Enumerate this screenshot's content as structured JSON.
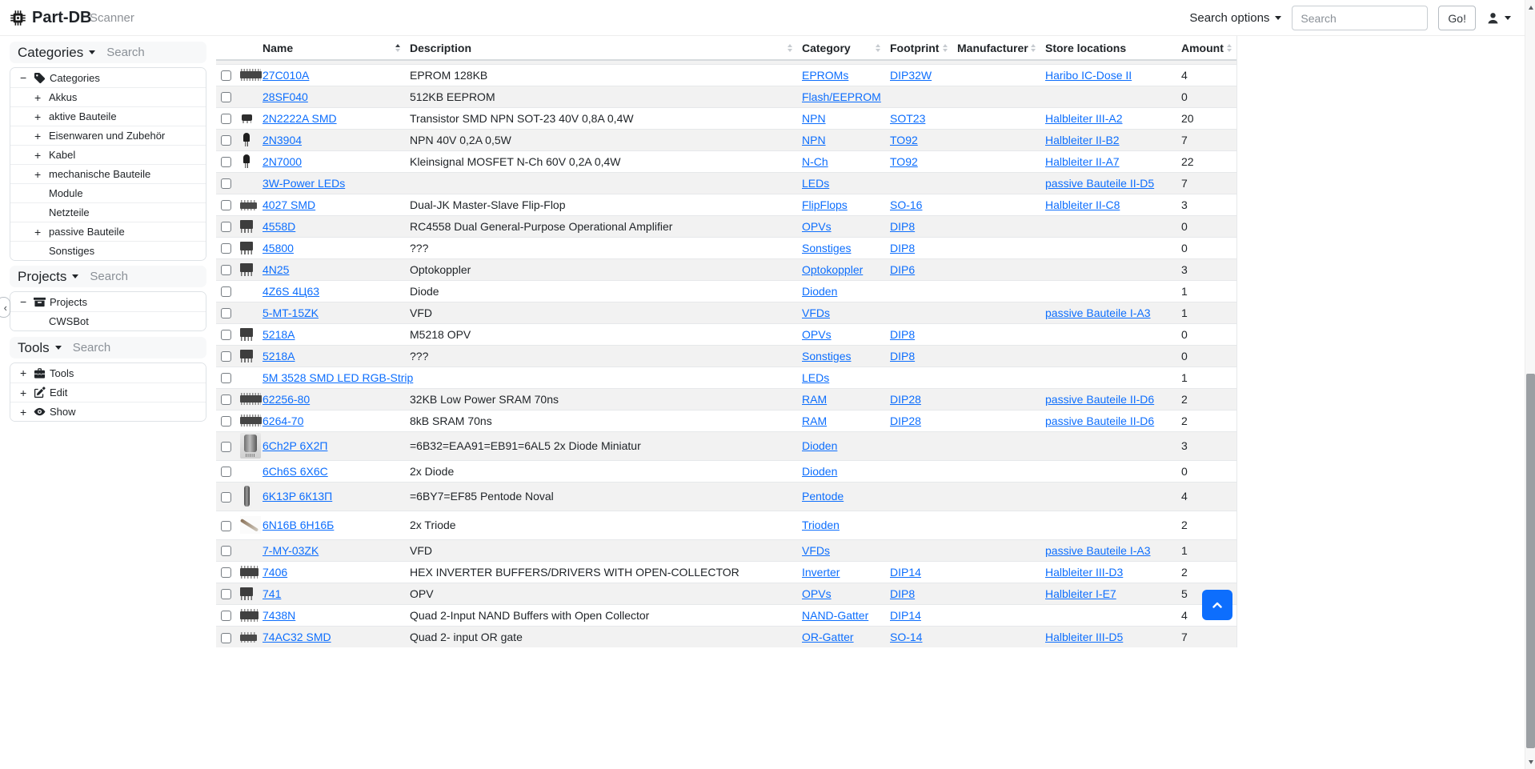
{
  "colors": {
    "link": "#0d6efd",
    "accent": "#0d6efd"
  },
  "navbar": {
    "brand": "Part-DB",
    "brand_icon": "microchip-icon",
    "nav_scanner": "Scanner",
    "search_options_label": "Search options",
    "search_placeholder": "Search",
    "go_label": "Go!",
    "user_icon": "person-icon"
  },
  "sidebar": {
    "collapse_handle_icon": "chevron-left-icon",
    "panels": [
      {
        "title": "Categories",
        "search_placeholder": "Search",
        "tree": [
          {
            "label": "Categories",
            "state": "expanded",
            "icon": "tag-icon",
            "level": 0
          },
          {
            "label": "Akkus",
            "state": "collapsed",
            "level": 1
          },
          {
            "label": "aktive Bauteile",
            "state": "collapsed",
            "level": 1
          },
          {
            "label": "Eisenwaren und Zubehör",
            "state": "collapsed",
            "level": 1
          },
          {
            "label": "Kabel",
            "state": "collapsed",
            "level": 1
          },
          {
            "label": "mechanische Bauteile",
            "state": "collapsed",
            "level": 1
          },
          {
            "label": "Module",
            "state": "leaf",
            "level": 1
          },
          {
            "label": "Netzteile",
            "state": "leaf",
            "level": 1
          },
          {
            "label": "passive Bauteile",
            "state": "collapsed",
            "level": 1
          },
          {
            "label": "Sonstiges",
            "state": "leaf",
            "level": 1
          }
        ]
      },
      {
        "title": "Projects",
        "search_placeholder": "Search",
        "tree": [
          {
            "label": "Projects",
            "state": "expanded",
            "icon": "archive-icon",
            "level": 0
          },
          {
            "label": "CWSBot",
            "state": "leaf",
            "level": 1
          }
        ]
      },
      {
        "title": "Tools",
        "search_placeholder": "Search",
        "tree": [
          {
            "label": "Tools",
            "state": "collapsed",
            "icon": "toolbox-icon",
            "level": 0
          },
          {
            "label": "Edit",
            "state": "collapsed",
            "icon": "pencil-square-icon",
            "level": 0
          },
          {
            "label": "Show",
            "state": "collapsed",
            "icon": "eye-icon",
            "level": 0
          }
        ]
      }
    ]
  },
  "table": {
    "columns": [
      {
        "label": "Name",
        "sort": "asc"
      },
      {
        "label": "Description",
        "sort": "both"
      },
      {
        "label": "Category",
        "sort": "both"
      },
      {
        "label": "Footprint",
        "sort": "both"
      },
      {
        "label": "Manufacturer",
        "sort": "both"
      },
      {
        "label": "Store locations",
        "sort": "none"
      },
      {
        "label": "Amount",
        "sort": "both"
      }
    ],
    "rows": [
      {
        "name": "27C010A",
        "description": "EPROM 128KB",
        "category": "EPROMs",
        "footprint": "DIP32W",
        "manufacturer": "",
        "location": "Haribo IC-Dose II",
        "amount": "4",
        "thumb": "dip-wide"
      },
      {
        "name": "28SF040",
        "description": "512KB EEPROM",
        "category": "Flash/EEPROM",
        "footprint": "",
        "manufacturer": "",
        "location": "",
        "amount": "0",
        "thumb": ""
      },
      {
        "name": "2N2222A SMD",
        "description": "Transistor SMD NPN SOT-23 40V 0,8A 0,4W",
        "category": "NPN",
        "footprint": "SOT23",
        "manufacturer": "",
        "location": "Halbleiter III-A2",
        "amount": "20",
        "thumb": "sot23"
      },
      {
        "name": "2N3904",
        "description": "NPN 40V 0,2A 0,5W",
        "category": "NPN",
        "footprint": "TO92",
        "manufacturer": "",
        "location": "Halbleiter II-B2",
        "amount": "7",
        "thumb": "to92"
      },
      {
        "name": "2N7000",
        "description": "Kleinsignal MOSFET N-Ch 60V 0,2A 0,4W",
        "category": "N-Ch",
        "footprint": "TO92",
        "manufacturer": "",
        "location": "Halbleiter II-A7",
        "amount": "22",
        "thumb": "to92"
      },
      {
        "name": "3W-Power LEDs",
        "description": "",
        "category": "LEDs",
        "footprint": "",
        "manufacturer": "",
        "location": "passive Bauteile II-D5",
        "amount": "7",
        "thumb": ""
      },
      {
        "name": "4027 SMD",
        "description": "Dual-JK Master-Slave Flip-Flop",
        "category": "FlipFlops",
        "footprint": "SO-16",
        "manufacturer": "",
        "location": "Halbleiter II-C8",
        "amount": "3",
        "thumb": "soic"
      },
      {
        "name": "4558D",
        "description": "RC4558 Dual General-Purpose Operational Amplifier",
        "category": "OPVs",
        "footprint": "DIP8",
        "manufacturer": "",
        "location": "",
        "amount": "0",
        "thumb": "dip8"
      },
      {
        "name": "45800",
        "description": "???",
        "category": "Sonstiges",
        "footprint": "DIP8",
        "manufacturer": "",
        "location": "",
        "amount": "0",
        "thumb": "dip8"
      },
      {
        "name": "4N25",
        "description": "Optokoppler",
        "category": "Optokoppler",
        "footprint": "DIP6",
        "manufacturer": "",
        "location": "",
        "amount": "3",
        "thumb": "dip8"
      },
      {
        "name": "4Z6S 4Ц63",
        "description": "Diode",
        "category": "Dioden",
        "footprint": "",
        "manufacturer": "",
        "location": "",
        "amount": "1",
        "thumb": ""
      },
      {
        "name": "5-MT-15ZK",
        "description": "VFD",
        "category": "VFDs",
        "footprint": "",
        "manufacturer": "",
        "location": "passive Bauteile I-A3",
        "amount": "1",
        "thumb": ""
      },
      {
        "name": "5218A",
        "description": "M5218 OPV",
        "category": "OPVs",
        "footprint": "DIP8",
        "manufacturer": "",
        "location": "",
        "amount": "0",
        "thumb": "dip8"
      },
      {
        "name": "5218A",
        "description": "???",
        "category": "Sonstiges",
        "footprint": "DIP8",
        "manufacturer": "",
        "location": "",
        "amount": "0",
        "thumb": "dip8"
      },
      {
        "name": "5M 3528 SMD LED RGB-Strip",
        "description": "",
        "category": "LEDs",
        "footprint": "",
        "manufacturer": "",
        "location": "",
        "amount": "1",
        "thumb": ""
      },
      {
        "name": "62256-80",
        "description": "32KB Low Power SRAM 70ns",
        "category": "RAM",
        "footprint": "DIP28",
        "manufacturer": "",
        "location": "passive Bauteile II-D6",
        "amount": "2",
        "thumb": "dip-wide"
      },
      {
        "name": "6264-70",
        "description": "8kB SRAM 70ns",
        "category": "RAM",
        "footprint": "DIP28",
        "manufacturer": "",
        "location": "passive Bauteile II-D6",
        "amount": "2",
        "thumb": "dip-wide"
      },
      {
        "name": "6Ch2P 6Х2П",
        "description": "=6B32=EAA91=EB91=6AL5 2x Diode Miniatur",
        "category": "Dioden",
        "footprint": "",
        "manufacturer": "",
        "location": "",
        "amount": "3",
        "thumb": "tube-photo-1"
      },
      {
        "name": "6Ch6S 6Х6С",
        "description": "2x Diode",
        "category": "Dioden",
        "footprint": "",
        "manufacturer": "",
        "location": "",
        "amount": "0",
        "thumb": ""
      },
      {
        "name": "6K13P 6К13П",
        "description": "=6BY7=EF85 Pentode Noval",
        "category": "Pentode",
        "footprint": "",
        "manufacturer": "",
        "location": "",
        "amount": "4",
        "thumb": "tube-photo-2"
      },
      {
        "name": "6N16B 6Н16Б",
        "description": "2x Triode",
        "category": "Trioden",
        "footprint": "",
        "manufacturer": "",
        "location": "",
        "amount": "2",
        "thumb": "tube-photo-3"
      },
      {
        "name": "7-MY-03ZK",
        "description": "VFD",
        "category": "VFDs",
        "footprint": "",
        "manufacturer": "",
        "location": "passive Bauteile I-A3",
        "amount": "1",
        "thumb": ""
      },
      {
        "name": "7406",
        "description": "HEX INVERTER BUFFERS/DRIVERS WITH OPEN-COLLECTOR",
        "category": "Inverter",
        "footprint": "DIP14",
        "manufacturer": "",
        "location": "Halbleiter III-D3",
        "amount": "2",
        "thumb": "dip14"
      },
      {
        "name": "741",
        "description": "OPV",
        "category": "OPVs",
        "footprint": "DIP8",
        "manufacturer": "",
        "location": "Halbleiter I-E7",
        "amount": "5",
        "thumb": "dip8"
      },
      {
        "name": "7438N",
        "description": "Quad 2-Input NAND Buffers with Open Collector",
        "category": "NAND-Gatter",
        "footprint": "DIP14",
        "manufacturer": "",
        "location": "",
        "amount": "4",
        "thumb": "dip14"
      },
      {
        "name": "74AC32 SMD",
        "description": "Quad 2- input OR gate",
        "category": "OR-Gatter",
        "footprint": "SO-14",
        "manufacturer": "",
        "location": "Halbleiter III-D5",
        "amount": "7",
        "thumb": "soic"
      }
    ]
  },
  "floating": {
    "scroll_top_icon": "chevron-up-icon"
  }
}
